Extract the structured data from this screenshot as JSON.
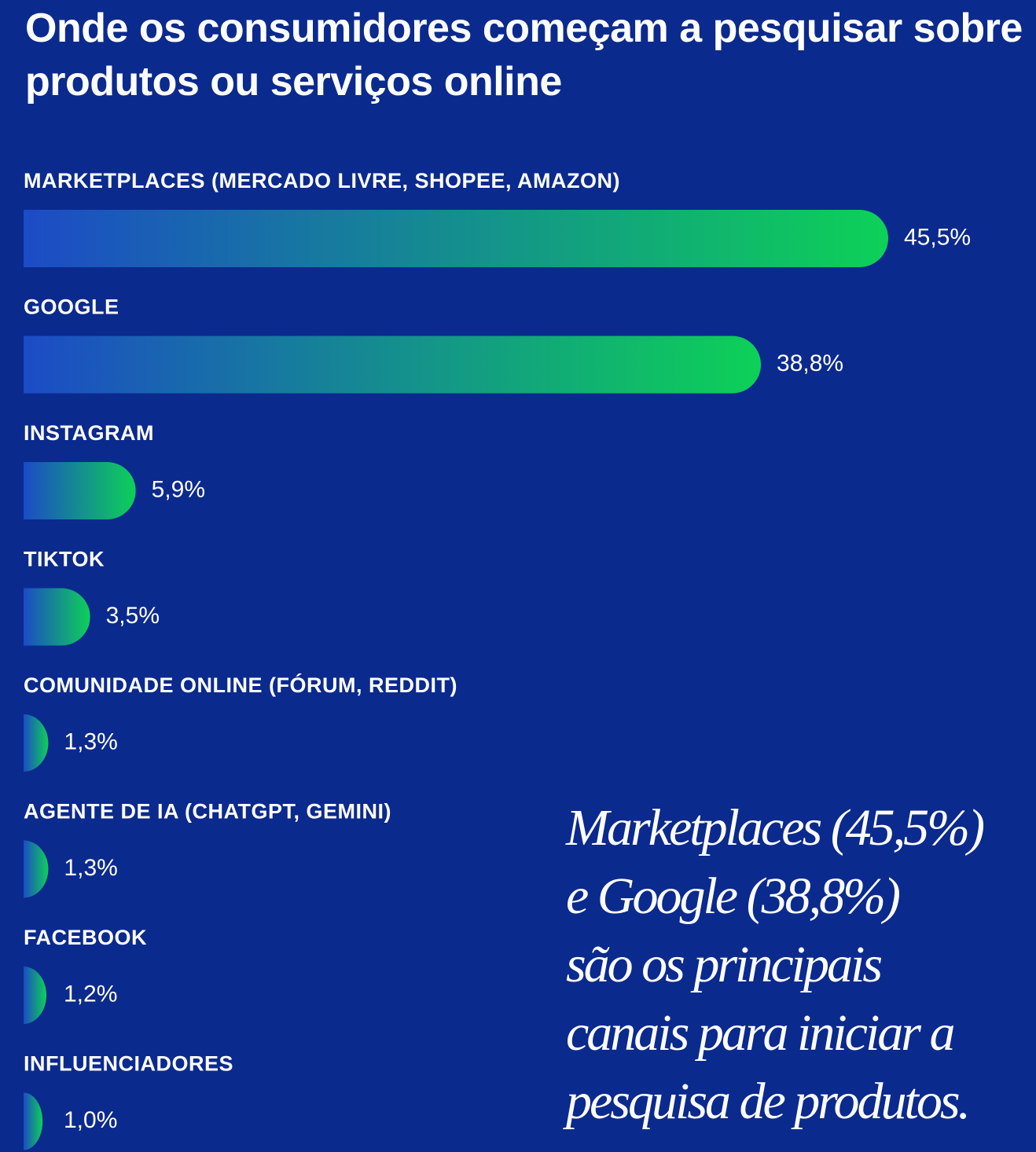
{
  "chart_data": {
    "type": "bar",
    "orientation": "horizontal",
    "title": "Onde os consumidores começam a pesquisar sobre produtos ou serviços online",
    "categories": [
      "MARKETPLACES (MERCADO LIVRE, SHOPEE, AMAZON)",
      "GOOGLE",
      "INSTAGRAM",
      "TIKTOK",
      "COMUNIDADE ONLINE (FÓRUM, REDDIT)",
      "AGENTE DE IA (CHATGPT, GEMINI)",
      "FACEBOOK",
      "INFLUENCIADORES"
    ],
    "values": [
      45.5,
      38.8,
      5.9,
      3.5,
      1.3,
      1.3,
      1.2,
      1.0
    ],
    "value_labels": [
      "45,5%",
      "38,8%",
      "5,9%",
      "3,5%",
      "1,3%",
      "1,3%",
      "1,2%",
      "1,0%"
    ],
    "color": [
      "#1c4bc6",
      "#0dd157"
    ],
    "annotation": [
      "Marketplaces (45,5%)",
      "e Google (38,8%)",
      "são os principais",
      "canais para iniciar a",
      "pesquisa de produtos."
    ]
  }
}
